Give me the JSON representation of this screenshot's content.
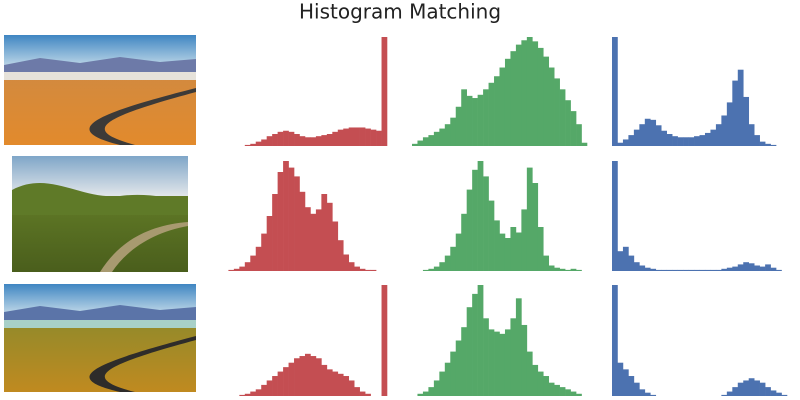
{
  "title": "Histogram Matching",
  "chart_data": [
    {
      "type": "bar",
      "color": "#c44e52",
      "ylim": [
        0,
        100
      ],
      "values": [
        0,
        0,
        0,
        0,
        0,
        0,
        1,
        2,
        4,
        6,
        9,
        11,
        13,
        14,
        13,
        11,
        9,
        8,
        8,
        9,
        10,
        11,
        13,
        15,
        16,
        17,
        17,
        17,
        16,
        15,
        14,
        100
      ]
    },
    {
      "type": "bar",
      "color": "#55a868",
      "ylim": [
        0,
        100
      ],
      "values": [
        2,
        5,
        8,
        10,
        13,
        16,
        20,
        26,
        36,
        52,
        46,
        44,
        47,
        52,
        58,
        64,
        72,
        80,
        87,
        93,
        97,
        100,
        96,
        90,
        82,
        72,
        62,
        52,
        42,
        32,
        20,
        3
      ]
    },
    {
      "type": "bar",
      "color": "#4c72b0",
      "ylim": [
        0,
        100
      ],
      "values": [
        100,
        3,
        6,
        10,
        15,
        20,
        25,
        24,
        19,
        14,
        11,
        9,
        8,
        8,
        8,
        9,
        10,
        12,
        15,
        20,
        28,
        40,
        60,
        70,
        45,
        20,
        10,
        4,
        2,
        1,
        0,
        0
      ]
    },
    {
      "type": "bar",
      "color": "#c44e52",
      "ylim": [
        0,
        100
      ],
      "values": [
        0,
        0,
        0,
        1,
        2,
        4,
        8,
        14,
        22,
        34,
        50,
        70,
        90,
        100,
        94,
        86,
        72,
        58,
        52,
        56,
        70,
        62,
        45,
        28,
        15,
        8,
        4,
        2,
        1,
        1,
        0,
        0
      ]
    },
    {
      "type": "bar",
      "color": "#55a868",
      "ylim": [
        0,
        100
      ],
      "values": [
        0,
        0,
        1,
        2,
        4,
        8,
        14,
        22,
        34,
        52,
        74,
        92,
        100,
        86,
        64,
        46,
        34,
        30,
        40,
        35,
        56,
        94,
        80,
        40,
        14,
        5,
        3,
        2,
        1,
        2,
        1,
        0
      ]
    },
    {
      "type": "bar",
      "color": "#4c72b0",
      "ylim": [
        0,
        100
      ],
      "values": [
        100,
        18,
        22,
        14,
        8,
        5,
        3,
        2,
        1,
        1,
        1,
        1,
        1,
        1,
        1,
        1,
        1,
        1,
        1,
        1,
        2,
        3,
        4,
        6,
        8,
        7,
        5,
        4,
        6,
        3,
        1,
        0
      ]
    },
    {
      "type": "bar",
      "color": "#c44e52",
      "ylim": [
        0,
        100
      ],
      "values": [
        0,
        0,
        0,
        0,
        0,
        1,
        2,
        4,
        6,
        10,
        14,
        18,
        22,
        26,
        30,
        34,
        36,
        38,
        36,
        34,
        28,
        24,
        22,
        20,
        18,
        14,
        8,
        4,
        2,
        0,
        0,
        100
      ]
    },
    {
      "type": "bar",
      "color": "#55a868",
      "ylim": [
        0,
        100
      ],
      "values": [
        0,
        2,
        4,
        8,
        14,
        22,
        30,
        40,
        50,
        62,
        80,
        92,
        100,
        70,
        60,
        58,
        56,
        60,
        70,
        88,
        64,
        40,
        28,
        22,
        18,
        12,
        10,
        8,
        6,
        4,
        2,
        0
      ]
    },
    {
      "type": "bar",
      "color": "#4c72b0",
      "ylim": [
        0,
        100
      ],
      "values": [
        100,
        30,
        24,
        18,
        12,
        6,
        3,
        1,
        0,
        0,
        0,
        0,
        0,
        0,
        0,
        0,
        0,
        0,
        0,
        0,
        1,
        4,
        8,
        12,
        14,
        16,
        14,
        12,
        8,
        5,
        3,
        1
      ]
    }
  ]
}
